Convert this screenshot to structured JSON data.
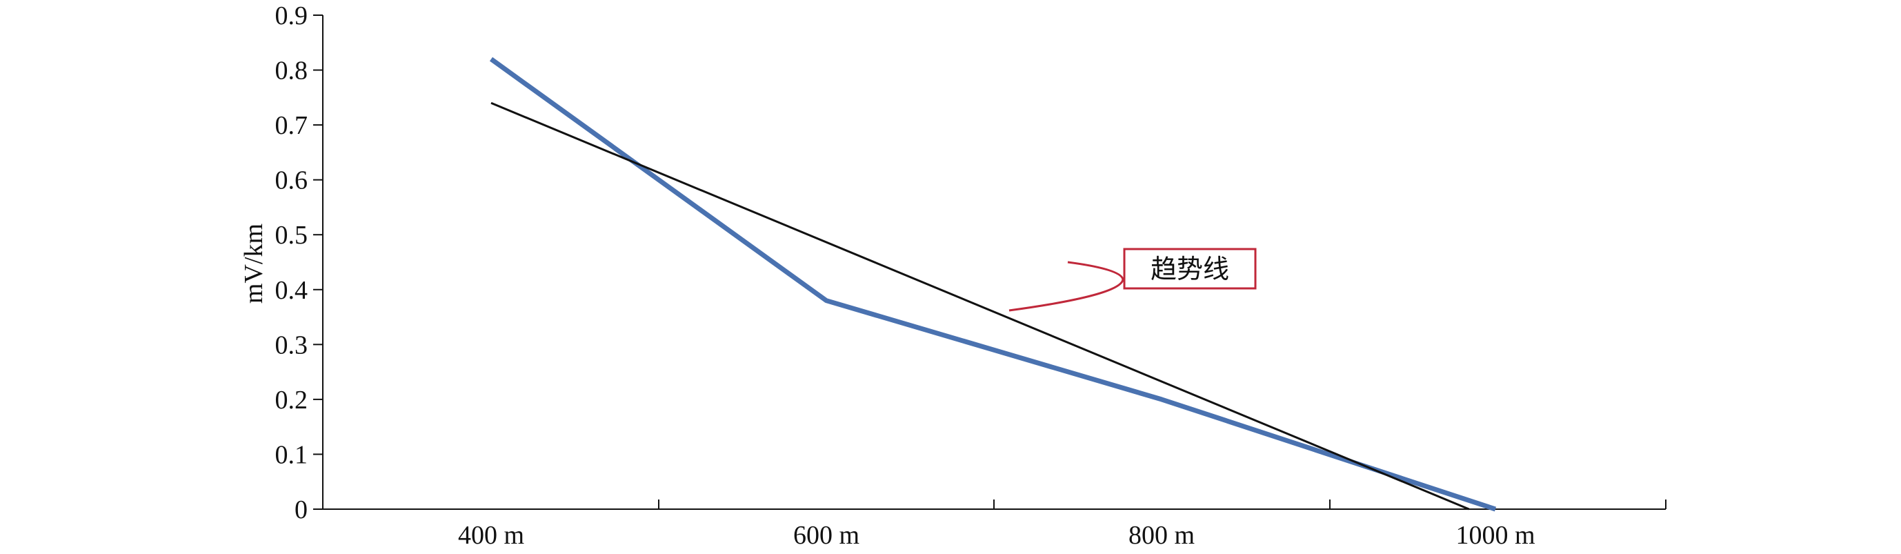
{
  "chart_data": {
    "type": "line",
    "title": "",
    "xlabel": "",
    "ylabel": "mV/km",
    "x_tick_labels": [
      "400 m",
      "600 m",
      "800 m",
      "1000 m"
    ],
    "y_ticks": [
      "0",
      "0.1",
      "0.2",
      "0.3",
      "0.4",
      "0.5",
      "0.6",
      "0.7",
      "0.8",
      "0.9"
    ],
    "ylim": [
      0,
      0.9
    ],
    "grid": false,
    "series": [
      {
        "x": [
          "400 m",
          "600 m",
          "800 m",
          "1000 m"
        ],
        "values": [
          0.82,
          0.38,
          0.2,
          0.0
        ],
        "color": "#4a72b0"
      },
      {
        "kind": "trendline",
        "x": [
          "400 m",
          "1000 m"
        ],
        "values": [
          0.74,
          -0.02
        ],
        "color": "#111111"
      }
    ],
    "annotation": {
      "text": "趋势线",
      "box_color": "#c0283a"
    }
  }
}
